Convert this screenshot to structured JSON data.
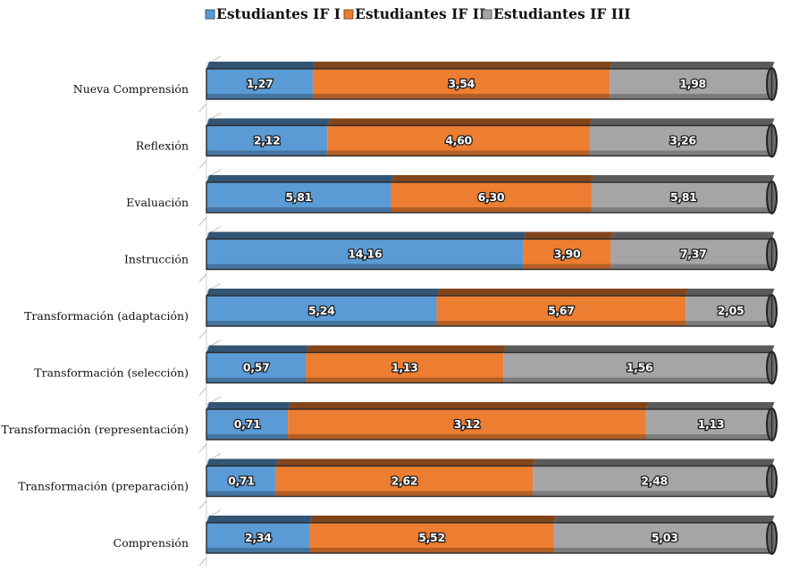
{
  "chart_data": {
    "type": "bar",
    "orientation": "horizontal",
    "stacked": "100%",
    "categories": [
      "Nueva Comprensión",
      "Reflexión",
      "Evaluación",
      "Instrucción",
      "Transformación (adaptación)",
      "Transformación (selección)",
      "Transformación (representación)",
      "Transformación (preparación)",
      "Comprensión"
    ],
    "series": [
      {
        "name": "Estudiantes IF I",
        "color": "#5b9bd5",
        "values": [
          1.27,
          2.12,
          5.81,
          14.16,
          5.24,
          0.57,
          0.71,
          0.71,
          2.34
        ],
        "labels": [
          "1,27",
          "2,12",
          "5,81",
          "14,16",
          "5,24",
          "0,57",
          "0,71",
          "0,71",
          "2,34"
        ]
      },
      {
        "name": "Estudiantes IF II",
        "color": "#ed7d31",
        "values": [
          3.54,
          4.6,
          6.3,
          3.9,
          5.67,
          1.13,
          3.12,
          2.62,
          5.52
        ],
        "labels": [
          "3,54",
          "4,60",
          "6,30",
          "3,90",
          "5,67",
          "1,13",
          "3,12",
          "2,62",
          "5,52"
        ]
      },
      {
        "name": "Estudiantes IF III",
        "color": "#a5a5a5",
        "values": [
          1.98,
          3.26,
          5.81,
          7.37,
          2.05,
          1.56,
          1.13,
          2.48,
          5.03
        ],
        "labels": [
          "1,98",
          "3,26",
          "5,81",
          "7,37",
          "2,05",
          "1,56",
          "1,13",
          "2,48",
          "5,03"
        ]
      }
    ],
    "legend_position": "top",
    "grid": false
  }
}
